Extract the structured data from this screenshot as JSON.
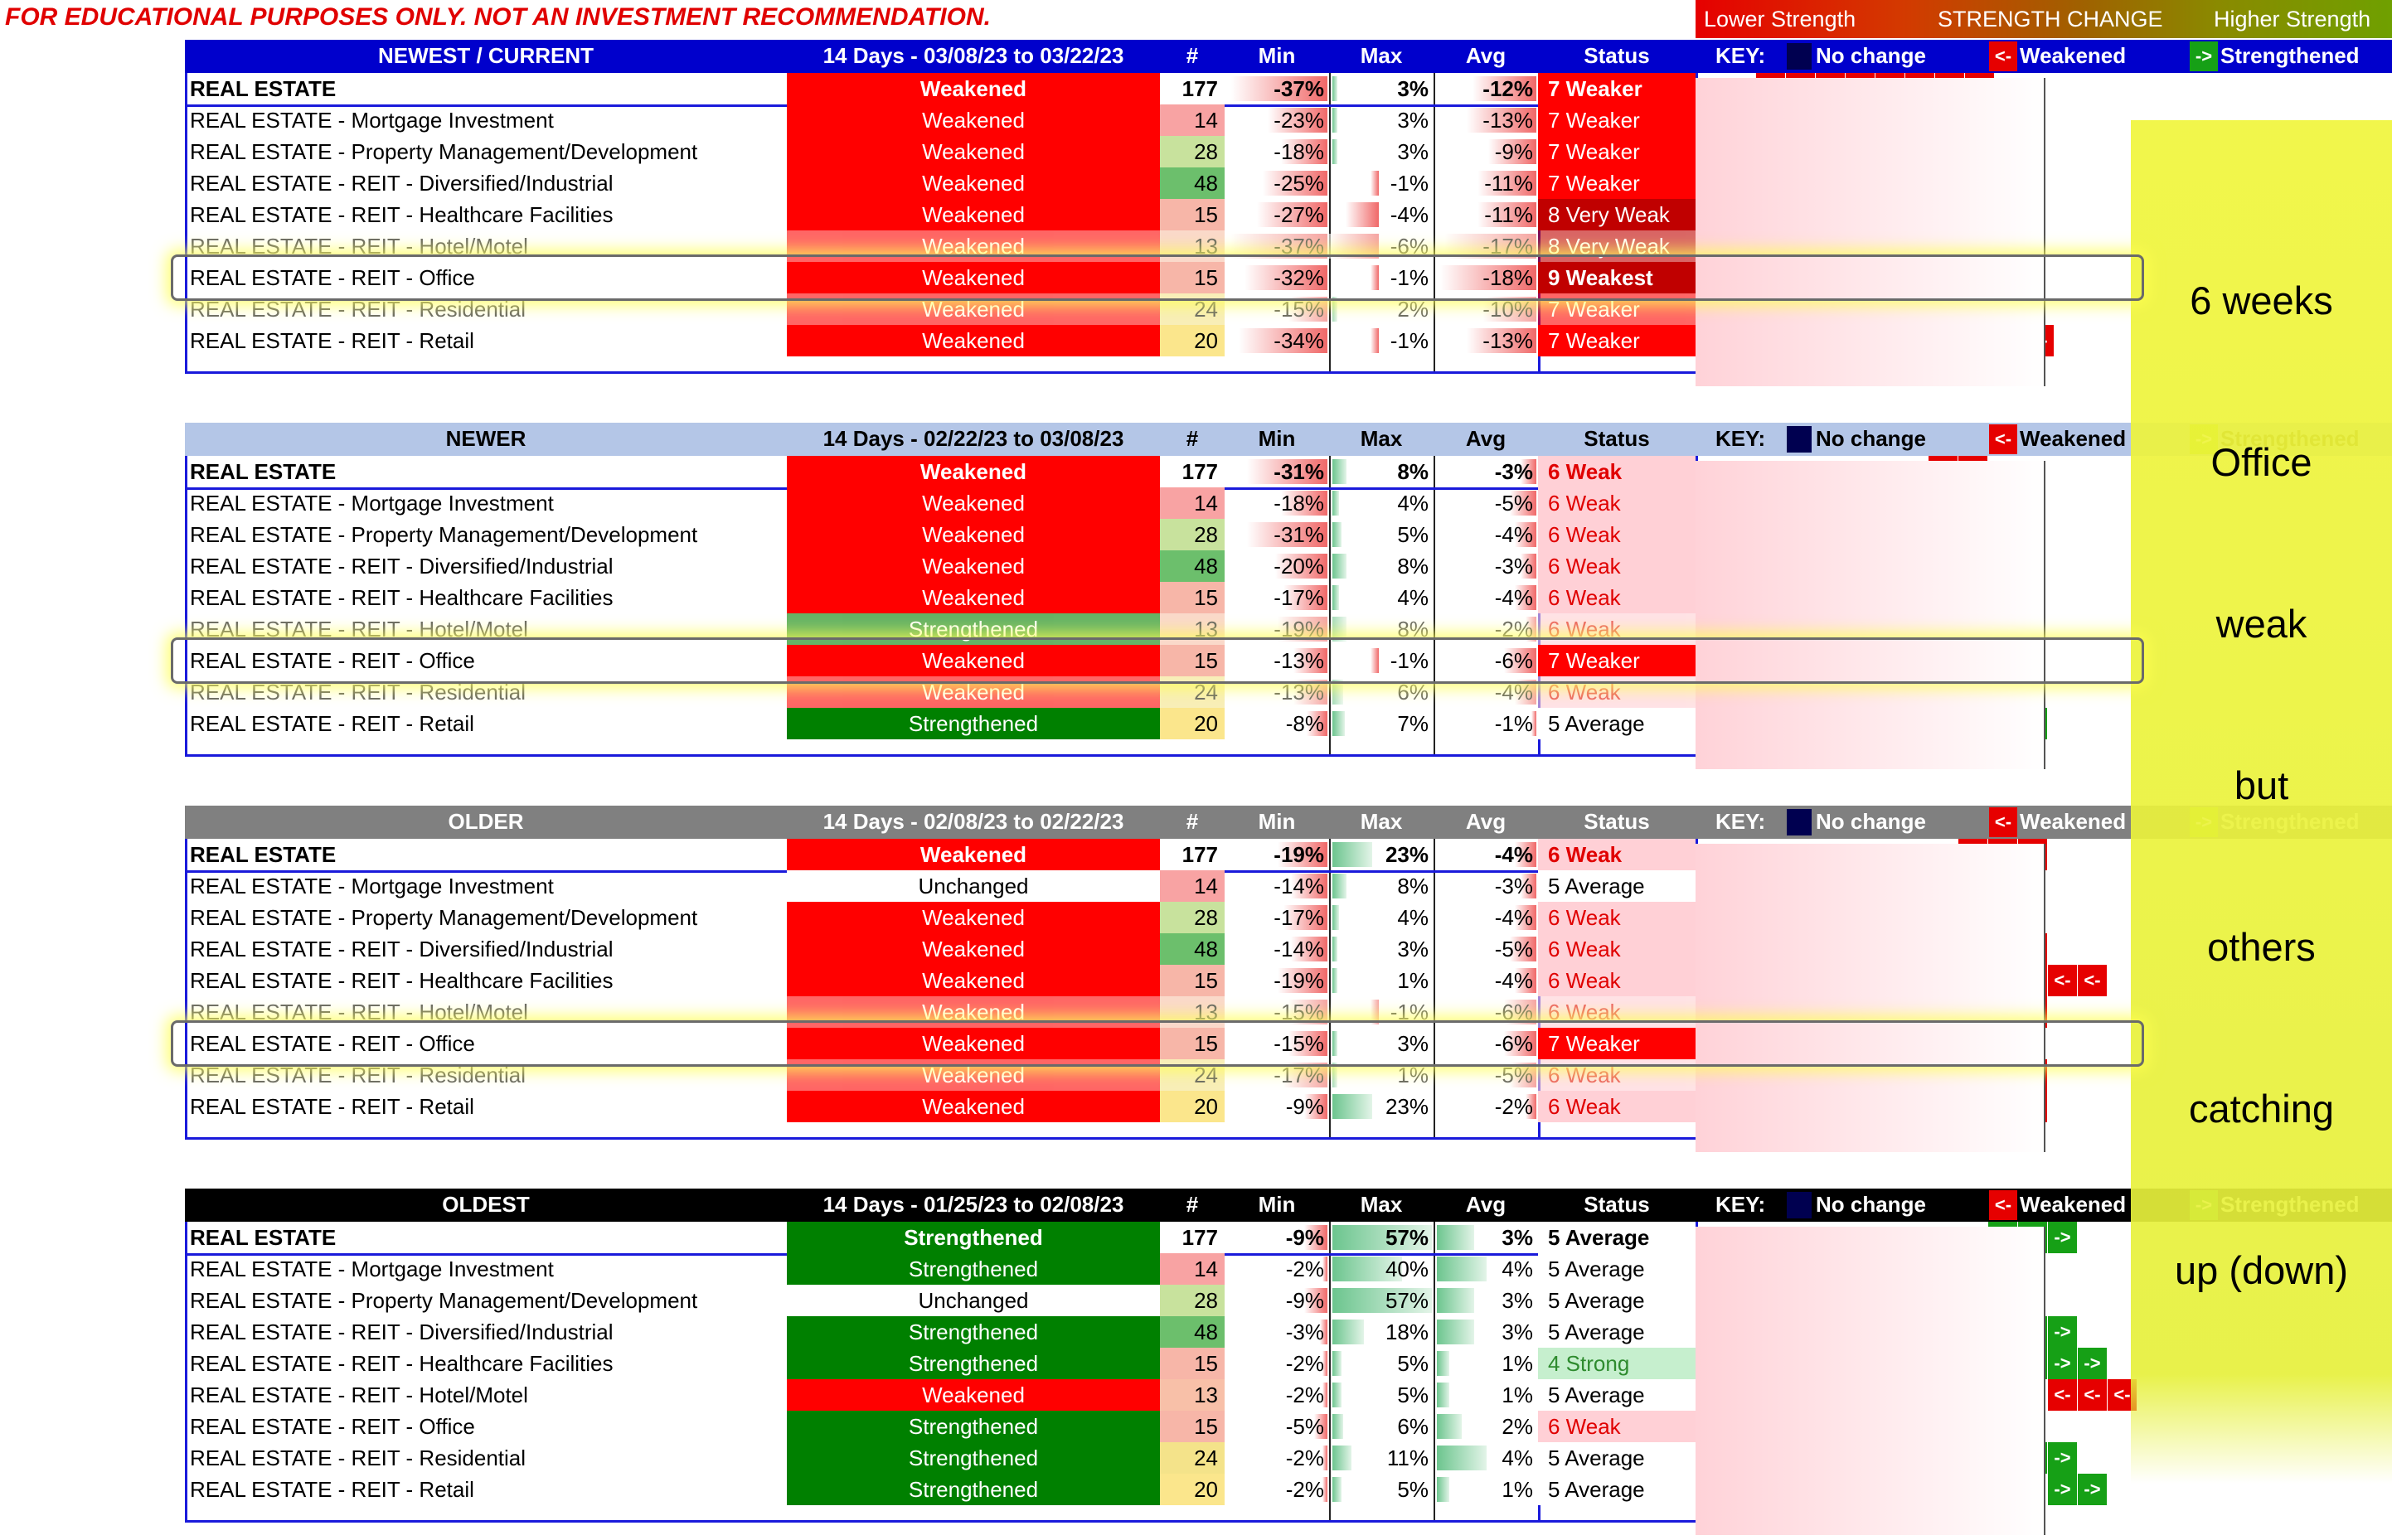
{
  "disclaimer": "FOR EDUCATIONAL PURPOSES ONLY. NOT AN INVESTMENT RECOMMENDATION.",
  "legend": {
    "left": "Lower Strength",
    "center": "STRENGTH CHANGE",
    "right": "Higher Strength"
  },
  "overlay": [
    "6 weeks",
    "Office",
    "weak",
    "but",
    "others",
    "catching",
    "up (down)"
  ],
  "key_labels": {
    "key": "KEY:",
    "no_change": "No change",
    "weakened": "Weakened",
    "strengthened": "Strengthened"
  },
  "columns": {
    "num": "#",
    "min": "Min",
    "max": "Max",
    "avg": "Avg",
    "status": "Status"
  },
  "colors": {
    "weakened": "#ff0000",
    "strengthened": "#008000",
    "header_newest": "#0000cc",
    "header_newer": "#b4c6e7",
    "header_older": "#808080",
    "header_oldest": "#000000"
  },
  "sections": [
    {
      "title": "NEWEST / CURRENT",
      "period": "14 Days - 03/08/23 to 03/22/23",
      "rows": [
        {
          "name": "REAL ESTATE",
          "change": "Weakened",
          "num": "177",
          "min": "-37%",
          "max": "3%",
          "avg": "-12%",
          "status": "7 Weaker",
          "arrows": "rrrrrrrr"
        },
        {
          "name": "REAL ESTATE - Mortgage Investment",
          "change": "Weakened",
          "num": "14",
          "min": "-23%",
          "max": "3%",
          "avg": "-13%",
          "status": "7 Weaker",
          "arrows": "rrrrrrr"
        },
        {
          "name": "REAL ESTATE - Property Management/Development",
          "change": "Weakened",
          "num": "28",
          "min": "-18%",
          "max": "3%",
          "avg": "-9%",
          "status": "7 Weaker",
          "arrows": "rrrrrrr"
        },
        {
          "name": "REAL ESTATE - REIT - Diversified/Industrial",
          "change": "Weakened",
          "num": "48",
          "min": "-25%",
          "max": "-1%",
          "avg": "-11%",
          "status": "7 Weaker",
          "arrows": "rrrrrr"
        },
        {
          "name": "REAL ESTATE - REIT - Healthcare Facilities",
          "change": "Weakened",
          "num": "15",
          "min": "-27%",
          "max": "-4%",
          "avg": "-11%",
          "status": "8 Very Weak",
          "arrows": "rrrrrrr"
        },
        {
          "name": "REAL ESTATE - REIT - Hotel/Motel",
          "change": "Weakened",
          "num": "13",
          "min": "-37%",
          "max": "-6%",
          "avg": "-17%",
          "status": "8 Very Weak",
          "arrows": "rrrrrrr"
        },
        {
          "name": "REAL ESTATE - REIT - Office",
          "change": "Weakened",
          "num": "15",
          "min": "-32%",
          "max": "-1%",
          "avg": "-18%",
          "status": "9 Weakest",
          "arrows": "rrr"
        },
        {
          "name": "REAL ESTATE - REIT - Residential",
          "change": "Weakened",
          "num": "24",
          "min": "-15%",
          "max": "2%",
          "avg": "-10%",
          "status": "7 Weaker",
          "arrows": "rrrrr"
        },
        {
          "name": "REAL ESTATE - REIT - Retail",
          "change": "Weakened",
          "num": "20",
          "min": "-34%",
          "max": "-1%",
          "avg": "-13%",
          "status": "7 Weaker",
          "arrows": "rrrrrrrrr"
        }
      ]
    },
    {
      "title": "NEWER",
      "period": "14 Days - 02/22/23 to 03/08/23",
      "rows": [
        {
          "name": "REAL ESTATE",
          "change": "Weakened",
          "num": "177",
          "min": "-31%",
          "max": "8%",
          "avg": "-3%",
          "status": "6 Weak",
          "arrows": "rr"
        },
        {
          "name": "REAL ESTATE - Mortgage Investment",
          "change": "Weakened",
          "num": "14",
          "min": "-18%",
          "max": "4%",
          "avg": "-5%",
          "status": "6 Weak",
          "arrows": "rrr"
        },
        {
          "name": "REAL ESTATE - Property Management/Development",
          "change": "Weakened",
          "num": "28",
          "min": "-31%",
          "max": "5%",
          "avg": "-4%",
          "status": "6 Weak",
          "arrows": "rr"
        },
        {
          "name": "REAL ESTATE - REIT - Diversified/Industrial",
          "change": "Weakened",
          "num": "48",
          "min": "-20%",
          "max": "8%",
          "avg": "-3%",
          "status": "6 Weak",
          "arrows": "rr"
        },
        {
          "name": "REAL ESTATE - REIT - Healthcare Facilities",
          "change": "Weakened",
          "num": "15",
          "min": "-17%",
          "max": "4%",
          "avg": "-4%",
          "status": "6 Weak",
          "arrows": "rrr"
        },
        {
          "name": "REAL ESTATE - REIT - Hotel/Motel",
          "change": "Strengthened",
          "num": "13",
          "min": "-19%",
          "max": "8%",
          "avg": "-2%",
          "status": "6 Weak",
          "arrows": "gg"
        },
        {
          "name": "REAL ESTATE - REIT - Office",
          "change": "Weakened",
          "num": "15",
          "min": "-13%",
          "max": "-1%",
          "avg": "-6%",
          "status": "7 Weaker",
          "arrows": "rrr"
        },
        {
          "name": "REAL ESTATE - REIT - Residential",
          "change": "Weakened",
          "num": "24",
          "min": "-13%",
          "max": "6%",
          "avg": "-4%",
          "status": "6 Weak",
          "arrows": "rrrr"
        },
        {
          "name": "REAL ESTATE - REIT - Retail",
          "change": "Strengthened",
          "num": "20",
          "min": "-8%",
          "max": "7%",
          "avg": "-1%",
          "status": "5 Average",
          "arrows": "ggg"
        }
      ]
    },
    {
      "title": "OLDER",
      "period": "14 Days - 02/08/23 to 02/22/23",
      "rows": [
        {
          "name": "REAL ESTATE",
          "change": "Weakened",
          "num": "177",
          "min": "-19%",
          "max": "23%",
          "avg": "-4%",
          "status": "6 Weak",
          "arrows": "rrr"
        },
        {
          "name": "REAL ESTATE - Mortgage Investment",
          "change": "Unchanged",
          "num": "14",
          "min": "-14%",
          "max": "8%",
          "avg": "-3%",
          "status": "5 Average",
          "arrows": "n"
        },
        {
          "name": "REAL ESTATE - Property Management/Development",
          "change": "Weakened",
          "num": "28",
          "min": "-17%",
          "max": "4%",
          "avg": "-4%",
          "status": "6 Weak",
          "arrows": "rr"
        },
        {
          "name": "REAL ESTATE - REIT - Diversified/Industrial",
          "change": "Weakened",
          "num": "48",
          "min": "-14%",
          "max": "3%",
          "avg": "-5%",
          "status": "6 Weak",
          "arrows": "rrr"
        },
        {
          "name": "REAL ESTATE - REIT - Healthcare Facilities",
          "change": "Weakened",
          "num": "15",
          "min": "-19%",
          "max": "1%",
          "avg": "-4%",
          "status": "6 Weak",
          "arrows": "rrrrr"
        },
        {
          "name": "REAL ESTATE - REIT - Hotel/Motel",
          "change": "Weakened",
          "num": "13",
          "min": "-15%",
          "max": "-1%",
          "avg": "-6%",
          "status": "6 Weak",
          "arrows": "rrrrr"
        },
        {
          "name": "REAL ESTATE - REIT - Office",
          "change": "Weakened",
          "num": "15",
          "min": "-15%",
          "max": "3%",
          "avg": "-6%",
          "status": "7 Weaker",
          "arrows": "rrrr"
        },
        {
          "name": "REAL ESTATE - REIT - Residential",
          "change": "Weakened",
          "num": "24",
          "min": "-17%",
          "max": "1%",
          "avg": "-5%",
          "status": "6 Weak",
          "arrows": "rrr"
        },
        {
          "name": "REAL ESTATE - REIT - Retail",
          "change": "Weakened",
          "num": "20",
          "min": "-9%",
          "max": "23%",
          "avg": "-2%",
          "status": "6 Weak",
          "arrows": "rrr"
        }
      ]
    },
    {
      "title": "OLDEST",
      "period": "14 Days - 01/25/23 to 02/08/23",
      "rows": [
        {
          "name": "REAL ESTATE",
          "change": "Strengthened",
          "num": "177",
          "min": "-9%",
          "max": "57%",
          "avg": "3%",
          "status": "5 Average",
          "arrows": "ggg"
        },
        {
          "name": "REAL ESTATE - Mortgage Investment",
          "change": "Strengthened",
          "num": "14",
          "min": "-2%",
          "max": "40%",
          "avg": "4%",
          "status": "5 Average",
          "arrows": "gg"
        },
        {
          "name": "REAL ESTATE - Property Management/Development",
          "change": "Unchanged",
          "num": "28",
          "min": "-9%",
          "max": "57%",
          "avg": "3%",
          "status": "5 Average",
          "arrows": "n"
        },
        {
          "name": "REAL ESTATE - REIT - Diversified/Industrial",
          "change": "Strengthened",
          "num": "48",
          "min": "-3%",
          "max": "18%",
          "avg": "3%",
          "status": "5 Average",
          "arrows": "gggg"
        },
        {
          "name": "REAL ESTATE - REIT - Healthcare Facilities",
          "change": "Strengthened",
          "num": "15",
          "min": "-2%",
          "max": "5%",
          "avg": "1%",
          "status": "4 Strong",
          "arrows": "ggg"
        },
        {
          "name": "REAL ESTATE - REIT - Hotel/Motel",
          "change": "Weakened",
          "num": "13",
          "min": "-2%",
          "max": "5%",
          "avg": "1%",
          "status": "5 Average",
          "arrows": "rrr"
        },
        {
          "name": "REAL ESTATE - REIT - Office",
          "change": "Strengthened",
          "num": "15",
          "min": "-5%",
          "max": "6%",
          "avg": "2%",
          "status": "6 Weak",
          "arrows": "gg"
        },
        {
          "name": "REAL ESTATE - REIT - Residential",
          "change": "Strengthened",
          "num": "24",
          "min": "-2%",
          "max": "11%",
          "avg": "4%",
          "status": "5 Average",
          "arrows": "gggg"
        },
        {
          "name": "REAL ESTATE - REIT - Retail",
          "change": "Strengthened",
          "num": "20",
          "min": "-2%",
          "max": "5%",
          "avg": "1%",
          "status": "5 Average",
          "arrows": "gg"
        }
      ]
    }
  ]
}
